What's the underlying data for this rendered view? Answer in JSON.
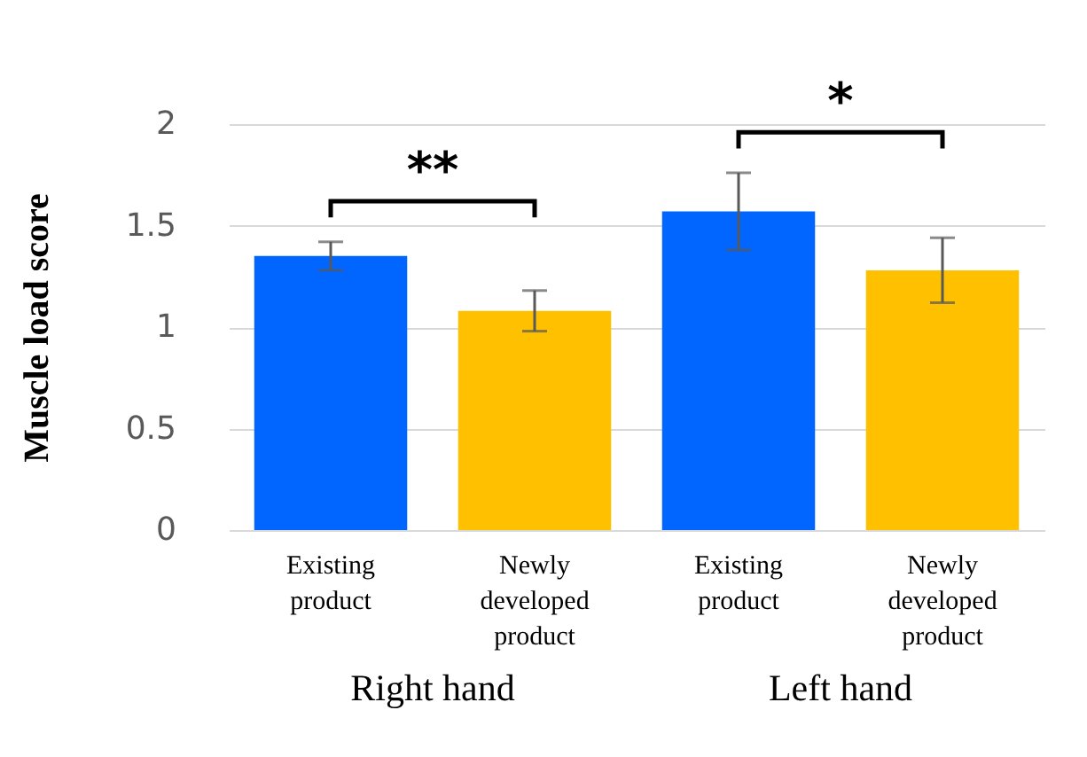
{
  "chart_data": {
    "type": "bar",
    "ylabel": "Muscle load score",
    "categories": [
      "Existing product",
      "Newly developed product",
      "Existing product",
      "Newly developed product"
    ],
    "values": [
      1.35,
      1.08,
      1.57,
      1.28
    ],
    "colors": [
      "#0066ff",
      "#ffc000",
      "#0066ff",
      "#ffc000"
    ],
    "errors": [
      0.07,
      0.1,
      0.19,
      0.16
    ],
    "ylim": [
      0,
      2
    ],
    "yticks": [
      0,
      0.5,
      1,
      1.5,
      2
    ],
    "grid": "y",
    "annotations": [
      "**",
      "*",
      "Right hand",
      "Left hand"
    ]
  }
}
